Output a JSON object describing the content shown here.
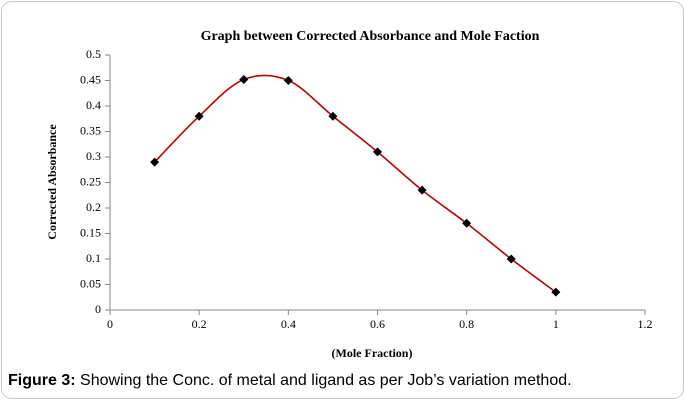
{
  "chart_data": {
    "type": "line",
    "title": "Graph between Corrected Absorbance and Mole Faction",
    "x_label": "(Mole Fraction)",
    "y_label": "Corrected Absorbance",
    "x": [
      0.1,
      0.2,
      0.3,
      0.4,
      0.5,
      0.6,
      0.7,
      0.8,
      0.9,
      1
    ],
    "series": [
      {
        "name": "Corrected Absorbance",
        "color": "#c00000",
        "marker_color": "#000000",
        "values": [
          0.29,
          0.38,
          0.452,
          0.45,
          0.38,
          0.31,
          0.235,
          0.17,
          0.1,
          0.035
        ]
      }
    ],
    "xlim": [
      0,
      1.2
    ],
    "xticks": [
      0,
      0.2,
      0.4,
      0.6,
      0.8,
      1,
      1.2
    ],
    "ylim": [
      0,
      0.5
    ],
    "yticks": [
      0,
      0.05,
      0.1,
      0.15,
      0.2,
      0.25,
      0.3,
      0.35,
      0.4,
      0.45,
      0.5
    ],
    "grid": false,
    "smooth": true
  },
  "caption": {
    "label": "Figure 3:",
    "text": "Showing the Conc. of metal and ligand as per Job’s variation method."
  }
}
